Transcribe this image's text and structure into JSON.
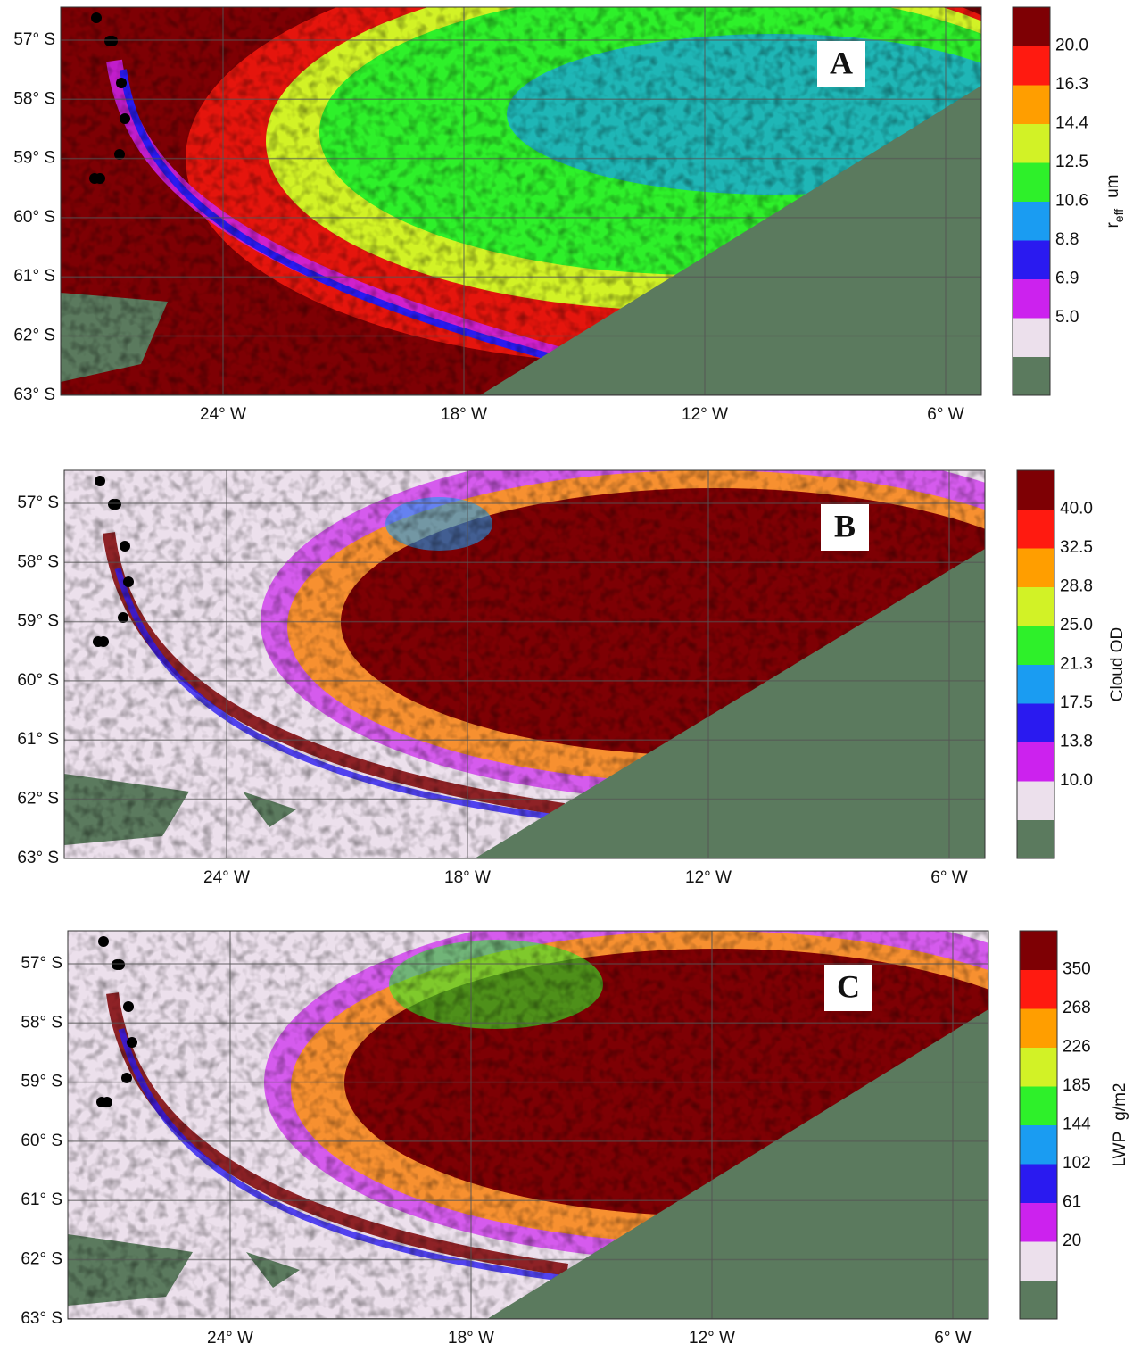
{
  "panels": [
    {
      "label": "A",
      "lat_ticks": [
        "57° S",
        "58° S",
        "59° S",
        "60° S",
        "61° S",
        "62° S",
        "63° S"
      ],
      "lon_ticks": [
        "24° W",
        "18° W",
        "12° W",
        "6° W"
      ],
      "colorbar": {
        "title": "r",
        "title_subscript": "eff",
        "unit": "um",
        "ticks": [
          "20.0",
          "16.3",
          "14.4",
          "12.5",
          "10.6",
          "8.8",
          "6.9",
          "5.0"
        ]
      }
    },
    {
      "label": "B",
      "lat_ticks": [
        "57° S",
        "58° S",
        "59° S",
        "60° S",
        "61° S",
        "62° S",
        "63° S"
      ],
      "lon_ticks": [
        "24° W",
        "18° W",
        "12° W",
        "6° W"
      ],
      "colorbar": {
        "title": "Cloud OD",
        "ticks": [
          "40.0",
          "32.5",
          "28.8",
          "25.0",
          "21.3",
          "17.5",
          "13.8",
          "10.0"
        ]
      }
    },
    {
      "label": "C",
      "lat_ticks": [
        "57° S",
        "58° S",
        "59° S",
        "60° S",
        "61° S",
        "62° S",
        "63° S"
      ],
      "lon_ticks": [
        "24° W",
        "18° W",
        "12° W",
        "6° W"
      ],
      "colorbar": {
        "title": "LWP",
        "unit": "g/m2",
        "ticks": [
          "350",
          "268",
          "226",
          "185",
          "144",
          "102",
          "61",
          "20"
        ]
      }
    }
  ],
  "colorbar_colors": [
    "#5b7a5e",
    "#ece0ec",
    "#cc22ee",
    "#2a1af0",
    "#1a9cf2",
    "#2ef02a",
    "#d2f226",
    "#ff9e00",
    "#ff1a10",
    "#7e0004"
  ]
}
